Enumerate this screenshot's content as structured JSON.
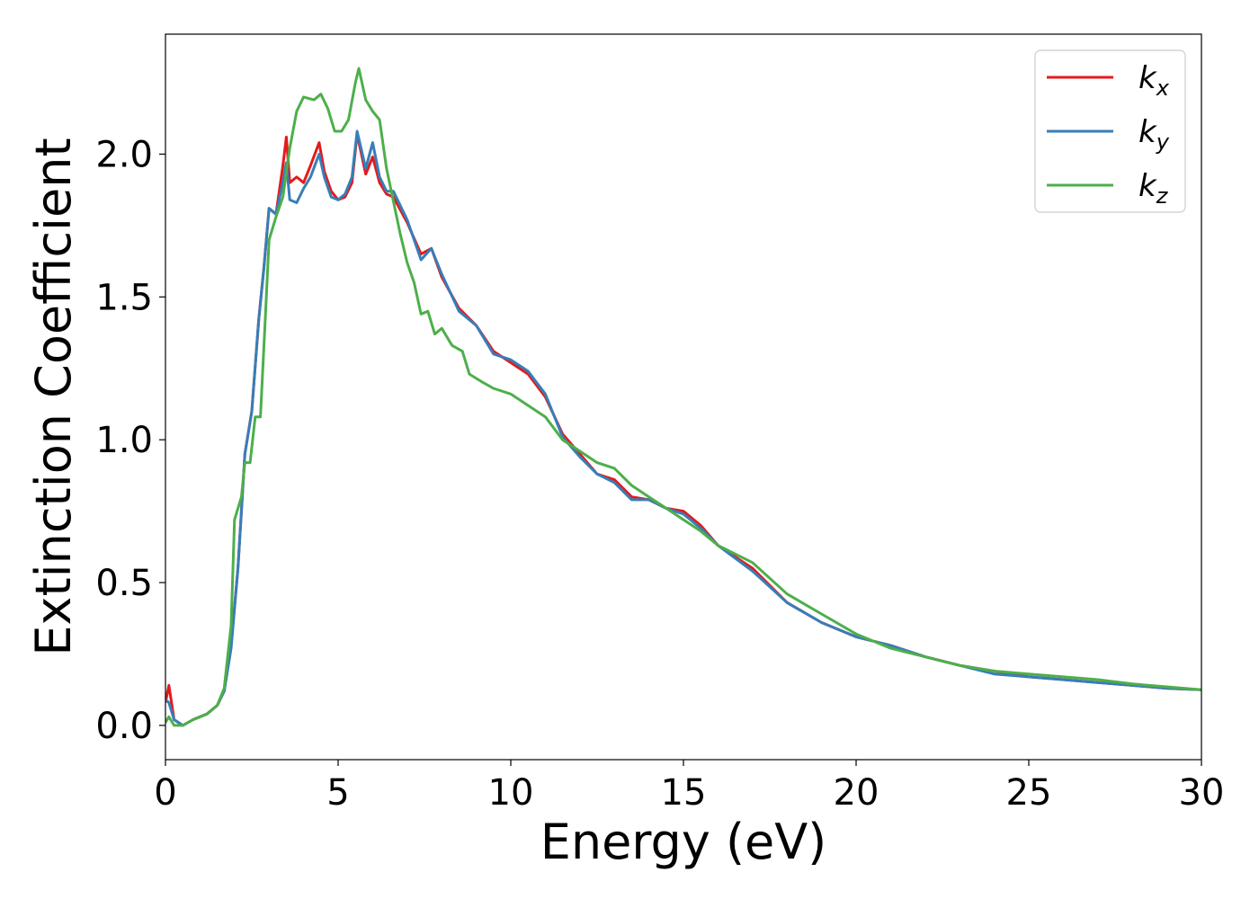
{
  "chart_data": {
    "type": "line",
    "xlabel": "Energy (eV)",
    "ylabel": "Extinction Coefficient",
    "xlim": [
      0,
      30
    ],
    "ylim": [
      -0.12,
      2.42
    ],
    "x_ticks": [
      "0",
      "5",
      "10",
      "15",
      "20",
      "25",
      "30"
    ],
    "y_ticks": [
      "0.0",
      "0.5",
      "1.0",
      "1.5",
      "2.0"
    ],
    "x_tick_values": [
      0,
      5,
      10,
      15,
      20,
      25,
      30
    ],
    "y_tick_values": [
      0.0,
      0.5,
      1.0,
      1.5,
      2.0
    ],
    "grid": false,
    "legend_position": "top-right",
    "series": [
      {
        "name": "k_x",
        "legend_base": "k",
        "legend_sub": "x",
        "color": "#e41a1c",
        "points": [
          [
            0,
            0.08
          ],
          [
            0.1,
            0.14
          ],
          [
            0.25,
            0.02
          ],
          [
            0.5,
            0.0
          ],
          [
            0.8,
            0.02
          ],
          [
            1.2,
            0.04
          ],
          [
            1.5,
            0.07
          ],
          [
            1.7,
            0.12
          ],
          [
            1.9,
            0.28
          ],
          [
            2.1,
            0.55
          ],
          [
            2.3,
            0.95
          ],
          [
            2.5,
            1.1
          ],
          [
            2.7,
            1.42
          ],
          [
            2.85,
            1.6
          ],
          [
            3.0,
            1.81
          ],
          [
            3.2,
            1.79
          ],
          [
            3.4,
            1.96
          ],
          [
            3.5,
            2.06
          ],
          [
            3.6,
            1.9
          ],
          [
            3.8,
            1.92
          ],
          [
            4.0,
            1.9
          ],
          [
            4.2,
            1.96
          ],
          [
            4.45,
            2.04
          ],
          [
            4.6,
            1.94
          ],
          [
            4.8,
            1.87
          ],
          [
            5.0,
            1.84
          ],
          [
            5.2,
            1.85
          ],
          [
            5.4,
            1.9
          ],
          [
            5.55,
            2.07
          ],
          [
            5.8,
            1.93
          ],
          [
            6.0,
            1.99
          ],
          [
            6.2,
            1.9
          ],
          [
            6.4,
            1.86
          ],
          [
            6.6,
            1.85
          ],
          [
            7.0,
            1.76
          ],
          [
            7.4,
            1.65
          ],
          [
            7.7,
            1.67
          ],
          [
            8.0,
            1.57
          ],
          [
            8.5,
            1.46
          ],
          [
            9.0,
            1.4
          ],
          [
            9.5,
            1.31
          ],
          [
            10.0,
            1.27
          ],
          [
            10.5,
            1.23
          ],
          [
            11.0,
            1.15
          ],
          [
            11.5,
            1.02
          ],
          [
            12.0,
            0.95
          ],
          [
            12.5,
            0.88
          ],
          [
            13.0,
            0.86
          ],
          [
            13.5,
            0.8
          ],
          [
            14.0,
            0.79
          ],
          [
            14.5,
            0.76
          ],
          [
            15.0,
            0.75
          ],
          [
            15.5,
            0.7
          ],
          [
            16.0,
            0.63
          ],
          [
            17.0,
            0.55
          ],
          [
            18.0,
            0.43
          ],
          [
            19.0,
            0.36
          ],
          [
            20.0,
            0.31
          ],
          [
            21.0,
            0.28
          ],
          [
            22.0,
            0.24
          ],
          [
            23.0,
            0.21
          ],
          [
            24.0,
            0.19
          ],
          [
            25.0,
            0.17
          ],
          [
            26.0,
            0.16
          ],
          [
            27.0,
            0.15
          ],
          [
            28.0,
            0.14
          ],
          [
            29.0,
            0.13
          ],
          [
            30.0,
            0.125
          ]
        ]
      },
      {
        "name": "k_y",
        "legend_base": "k",
        "legend_sub": "y",
        "color": "#377eb8",
        "points": [
          [
            0,
            0.09
          ],
          [
            0.1,
            0.08
          ],
          [
            0.25,
            0.02
          ],
          [
            0.5,
            0.0
          ],
          [
            0.8,
            0.02
          ],
          [
            1.2,
            0.04
          ],
          [
            1.5,
            0.07
          ],
          [
            1.7,
            0.12
          ],
          [
            1.9,
            0.27
          ],
          [
            2.1,
            0.55
          ],
          [
            2.3,
            0.95
          ],
          [
            2.5,
            1.1
          ],
          [
            2.7,
            1.42
          ],
          [
            2.85,
            1.6
          ],
          [
            3.0,
            1.81
          ],
          [
            3.2,
            1.79
          ],
          [
            3.4,
            1.9
          ],
          [
            3.5,
            1.97
          ],
          [
            3.6,
            1.84
          ],
          [
            3.8,
            1.83
          ],
          [
            4.0,
            1.88
          ],
          [
            4.2,
            1.92
          ],
          [
            4.45,
            2.0
          ],
          [
            4.6,
            1.92
          ],
          [
            4.8,
            1.85
          ],
          [
            5.0,
            1.84
          ],
          [
            5.2,
            1.86
          ],
          [
            5.4,
            1.92
          ],
          [
            5.55,
            2.08
          ],
          [
            5.8,
            1.95
          ],
          [
            6.0,
            2.04
          ],
          [
            6.2,
            1.92
          ],
          [
            6.4,
            1.87
          ],
          [
            6.6,
            1.87
          ],
          [
            7.0,
            1.77
          ],
          [
            7.4,
            1.63
          ],
          [
            7.7,
            1.67
          ],
          [
            8.0,
            1.58
          ],
          [
            8.5,
            1.45
          ],
          [
            9.0,
            1.4
          ],
          [
            9.5,
            1.3
          ],
          [
            10.0,
            1.28
          ],
          [
            10.5,
            1.24
          ],
          [
            11.0,
            1.16
          ],
          [
            11.5,
            1.01
          ],
          [
            12.0,
            0.94
          ],
          [
            12.5,
            0.88
          ],
          [
            13.0,
            0.85
          ],
          [
            13.5,
            0.79
          ],
          [
            14.0,
            0.79
          ],
          [
            14.5,
            0.76
          ],
          [
            15.0,
            0.74
          ],
          [
            15.5,
            0.69
          ],
          [
            16.0,
            0.63
          ],
          [
            17.0,
            0.54
          ],
          [
            18.0,
            0.43
          ],
          [
            19.0,
            0.36
          ],
          [
            20.0,
            0.31
          ],
          [
            21.0,
            0.28
          ],
          [
            22.0,
            0.24
          ],
          [
            23.0,
            0.21
          ],
          [
            24.0,
            0.18
          ],
          [
            25.0,
            0.17
          ],
          [
            26.0,
            0.16
          ],
          [
            27.0,
            0.15
          ],
          [
            28.0,
            0.14
          ],
          [
            29.0,
            0.13
          ],
          [
            30.0,
            0.125
          ]
        ]
      },
      {
        "name": "k_z",
        "legend_base": "k",
        "legend_sub": "z",
        "color": "#4daf4a",
        "points": [
          [
            0,
            0.01
          ],
          [
            0.1,
            0.03
          ],
          [
            0.25,
            0.0
          ],
          [
            0.5,
            0.0
          ],
          [
            0.8,
            0.02
          ],
          [
            1.2,
            0.04
          ],
          [
            1.5,
            0.07
          ],
          [
            1.7,
            0.13
          ],
          [
            1.9,
            0.35
          ],
          [
            2.0,
            0.72
          ],
          [
            2.2,
            0.8
          ],
          [
            2.3,
            0.92
          ],
          [
            2.45,
            0.92
          ],
          [
            2.6,
            1.08
          ],
          [
            2.75,
            1.08
          ],
          [
            2.9,
            1.45
          ],
          [
            3.0,
            1.7
          ],
          [
            3.2,
            1.78
          ],
          [
            3.4,
            1.85
          ],
          [
            3.6,
            2.02
          ],
          [
            3.8,
            2.15
          ],
          [
            4.0,
            2.2
          ],
          [
            4.3,
            2.19
          ],
          [
            4.5,
            2.21
          ],
          [
            4.7,
            2.16
          ],
          [
            4.9,
            2.08
          ],
          [
            5.1,
            2.08
          ],
          [
            5.3,
            2.12
          ],
          [
            5.5,
            2.25
          ],
          [
            5.6,
            2.3
          ],
          [
            5.8,
            2.19
          ],
          [
            6.0,
            2.15
          ],
          [
            6.2,
            2.12
          ],
          [
            6.4,
            1.95
          ],
          [
            6.8,
            1.72
          ],
          [
            7.0,
            1.62
          ],
          [
            7.2,
            1.55
          ],
          [
            7.4,
            1.44
          ],
          [
            7.6,
            1.45
          ],
          [
            7.8,
            1.37
          ],
          [
            8.0,
            1.39
          ],
          [
            8.3,
            1.33
          ],
          [
            8.6,
            1.31
          ],
          [
            8.8,
            1.23
          ],
          [
            9.2,
            1.2
          ],
          [
            9.5,
            1.18
          ],
          [
            10.0,
            1.16
          ],
          [
            10.5,
            1.12
          ],
          [
            11.0,
            1.08
          ],
          [
            11.5,
            1.0
          ],
          [
            12.0,
            0.96
          ],
          [
            12.5,
            0.92
          ],
          [
            13.0,
            0.9
          ],
          [
            13.5,
            0.84
          ],
          [
            14.0,
            0.8
          ],
          [
            14.5,
            0.76
          ],
          [
            15.0,
            0.72
          ],
          [
            15.5,
            0.68
          ],
          [
            16.0,
            0.63
          ],
          [
            17.0,
            0.57
          ],
          [
            18.0,
            0.46
          ],
          [
            19.0,
            0.39
          ],
          [
            20.0,
            0.32
          ],
          [
            21.0,
            0.27
          ],
          [
            22.0,
            0.24
          ],
          [
            23.0,
            0.21
          ],
          [
            24.0,
            0.19
          ],
          [
            25.0,
            0.18
          ],
          [
            26.0,
            0.17
          ],
          [
            27.0,
            0.16
          ],
          [
            28.0,
            0.145
          ],
          [
            29.0,
            0.135
          ],
          [
            30.0,
            0.125
          ]
        ]
      }
    ]
  }
}
